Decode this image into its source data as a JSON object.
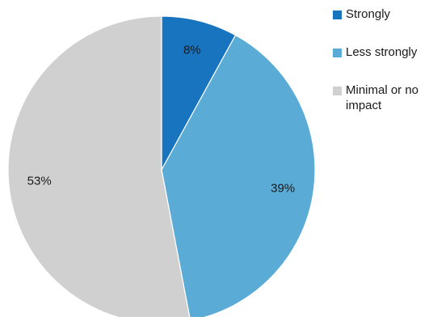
{
  "chart_data": {
    "type": "pie",
    "categories": [
      "Strongly",
      "Less strongly",
      "Minimal or no impact"
    ],
    "values": [
      8,
      39,
      53
    ],
    "labels": [
      "8%",
      "39%",
      "53%"
    ],
    "colors": [
      "#1874bf",
      "#5aabd6",
      "#d0d0d0"
    ],
    "label_colors": [
      "#ffffff",
      "#1a1a1a",
      "#1a1a1a"
    ],
    "start_angle_deg": 0,
    "direction": "clockwise",
    "legend_position": "top-right",
    "title": ""
  },
  "legend": {
    "items": [
      {
        "label": "Strongly",
        "color": "#1874bf"
      },
      {
        "label": "Less strongly",
        "color": "#5aabd6"
      },
      {
        "label": "Minimal or no impact",
        "color": "#d0d0d0"
      }
    ]
  }
}
